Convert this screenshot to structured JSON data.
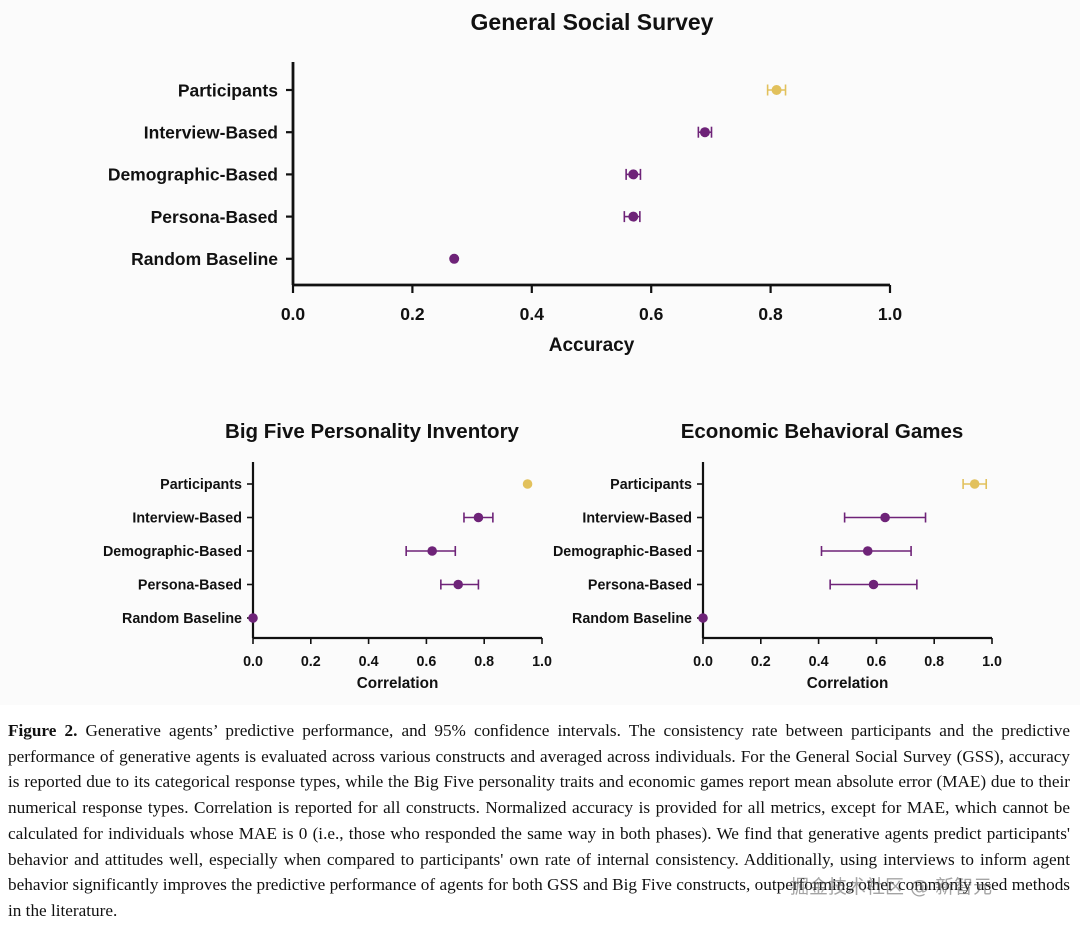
{
  "colors": {
    "participants": "#e2c15c",
    "agents": "#6e2378",
    "axis": "#111111"
  },
  "chart_data": [
    {
      "type": "scatter",
      "title": "General Social Survey",
      "xlabel": "Accuracy",
      "xlim": [
        0,
        1
      ],
      "xticks": [
        "0.0",
        "0.2",
        "0.4",
        "0.6",
        "0.8",
        "1.0"
      ],
      "categories": [
        "Participants",
        "Interview-Based",
        "Demographic-Based",
        "Persona-Based",
        "Random Baseline"
      ],
      "values": [
        0.81,
        0.69,
        0.57,
        0.57,
        0.27
      ],
      "ci_low": [
        0.795,
        0.679,
        0.558,
        0.555,
        0.27
      ],
      "ci_high": [
        0.825,
        0.701,
        0.582,
        0.581,
        0.27
      ],
      "highlight": "Participants"
    },
    {
      "type": "scatter",
      "title": "Big Five Personality Inventory",
      "xlabel": "Correlation",
      "xlim": [
        0,
        1
      ],
      "xticks": [
        "0.0",
        "0.2",
        "0.4",
        "0.6",
        "0.8",
        "1.0"
      ],
      "categories": [
        "Participants",
        "Interview-Based",
        "Demographic-Based",
        "Persona-Based",
        "Random Baseline"
      ],
      "values": [
        0.95,
        0.78,
        0.62,
        0.71,
        0.0
      ],
      "ci_low": [
        0.95,
        0.73,
        0.53,
        0.65,
        0.0
      ],
      "ci_high": [
        0.95,
        0.83,
        0.7,
        0.78,
        0.0
      ],
      "highlight": "Participants"
    },
    {
      "type": "scatter",
      "title": "Economic Behavioral Games",
      "xlabel": "Correlation",
      "xlim": [
        0,
        1
      ],
      "xticks": [
        "0.0",
        "0.2",
        "0.4",
        "0.6",
        "0.8",
        "1.0"
      ],
      "categories": [
        "Participants",
        "Interview-Based",
        "Demographic-Based",
        "Persona-Based",
        "Random Baseline"
      ],
      "values": [
        0.94,
        0.63,
        0.57,
        0.59,
        0.0
      ],
      "ci_low": [
        0.9,
        0.49,
        0.41,
        0.44,
        0.0
      ],
      "ci_high": [
        0.98,
        0.77,
        0.72,
        0.74,
        0.0
      ],
      "highlight": "Participants"
    }
  ],
  "caption": {
    "label": "Figure 2.",
    "text": " Generative agents’ predictive performance, and 95% confidence intervals. The consistency rate between participants and the predictive performance of generative agents is evaluated across various constructs and averaged across individuals. For the General Social Survey (GSS), accuracy is reported due to its categorical response types, while the Big Five personality traits and economic games report mean absolute error (MAE) due to their numerical response types. Correlation is reported for all constructs. Normalized accuracy is provided for all metrics, except for MAE, which cannot be calculated for individuals whose MAE is 0 (i.e., those who responded the same way in both phases). We find that generative agents predict participants' behavior and attitudes well, especially when compared to participants' own rate of internal consistency. Additionally, using interviews to inform agent behavior significantly improves the predictive performance of agents for both GSS and Big Five constructs, outperforming other commonly used methods in the literature."
  },
  "watermark": "掘金技术社区 @ 新智元"
}
